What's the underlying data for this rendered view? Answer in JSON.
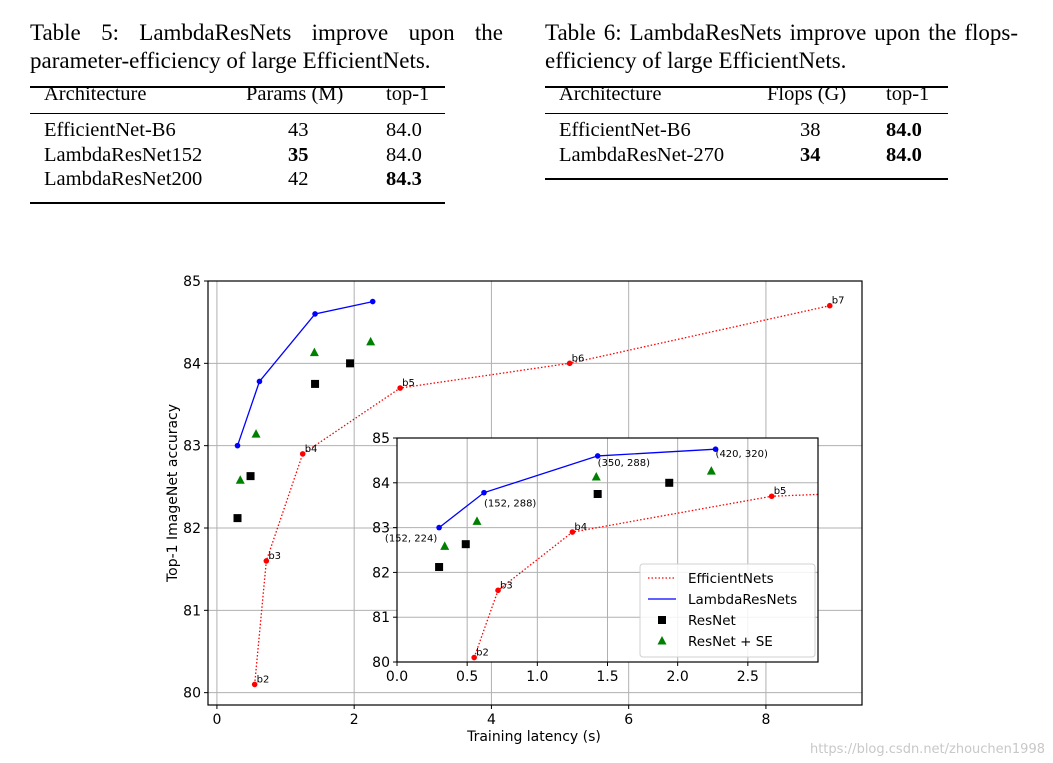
{
  "table5": {
    "caption": "Table 5: LambdaResNets improve upon the parameter-efficiency of large EfficientNets.",
    "headers": [
      "Architecture",
      "Params (M)",
      "top-1"
    ],
    "rows": [
      {
        "arch": "EfficientNet-B6",
        "val": "43",
        "top1": "84.0",
        "bold_val": false,
        "bold_top1": false
      },
      {
        "arch": "LambdaResNet152",
        "val": "35",
        "top1": "84.0",
        "bold_val": true,
        "bold_top1": false
      },
      {
        "arch": "LambdaResNet200",
        "val": "42",
        "top1": "84.3",
        "bold_val": false,
        "bold_top1": true
      }
    ]
  },
  "table6": {
    "caption": "Table 6: LambdaResNets improve upon the flops-efficiency of large EfficientNets.",
    "headers": [
      "Architecture",
      "Flops (G)",
      "top-1"
    ],
    "rows": [
      {
        "arch": "EfficientNet-B6",
        "val": "38",
        "top1": "84.0",
        "bold_val": false,
        "bold_top1": true
      },
      {
        "arch": "LambdaResNet-270",
        "val": "34",
        "top1": "84.0",
        "bold_val": true,
        "bold_top1": true
      }
    ]
  },
  "chart_data": [
    {
      "type": "line",
      "xlabel": "Training latency (s)",
      "ylabel": "Top-1 ImageNet accuracy",
      "xlim": [
        -0.13,
        9.4
      ],
      "ylim": [
        79.85,
        85
      ],
      "xticks": [
        0,
        2,
        4,
        6,
        8
      ],
      "yticks": [
        80,
        81,
        82,
        83,
        84,
        85
      ],
      "grid": true,
      "series": [
        {
          "name": "EfficientNets",
          "style": "dotted",
          "color": "#ff0000",
          "points": [
            [
              0.55,
              80.1
            ],
            [
              0.72,
              81.6
            ],
            [
              1.25,
              82.9
            ],
            [
              2.67,
              83.7
            ],
            [
              5.14,
              84.0
            ],
            [
              8.93,
              84.7
            ]
          ],
          "labels": [
            "b2",
            "b3",
            "b4",
            "b5",
            "b6",
            "b7"
          ]
        },
        {
          "name": "LambdaResNets",
          "style": "solid",
          "color": "#0000ff",
          "points": [
            [
              0.3,
              83.0
            ],
            [
              0.62,
              83.78
            ],
            [
              1.43,
              84.6
            ],
            [
              2.27,
              84.75
            ]
          ]
        },
        {
          "name": "ResNet",
          "style": "marker-square",
          "color": "#000000",
          "points": [
            [
              0.3,
              82.12
            ],
            [
              0.49,
              82.63
            ],
            [
              1.43,
              83.75
            ],
            [
              1.94,
              84.0
            ]
          ]
        },
        {
          "name": "ResNet + SE",
          "style": "marker-triangle",
          "color": "#008000",
          "points": [
            [
              0.34,
              82.58
            ],
            [
              0.57,
              83.14
            ],
            [
              1.42,
              84.13
            ],
            [
              2.24,
              84.26
            ]
          ]
        }
      ]
    },
    {
      "type": "line",
      "inset": true,
      "xlim": [
        0,
        3.0
      ],
      "ylim": [
        80,
        85
      ],
      "xticks": [
        "0.0",
        "0.5",
        "1.0",
        "1.5",
        "2.0",
        "2.5"
      ],
      "yticks": [
        80,
        81,
        82,
        83,
        84,
        85
      ],
      "grid": true,
      "legend": "lower-right",
      "lambda_annotations": [
        "(152, 224)",
        "(152, 288)",
        "(350, 288)",
        "(420, 320)"
      ],
      "efficientnet_labels": [
        "b2",
        "b3",
        "b4",
        "b5"
      ]
    }
  ],
  "watermark": "https://blog.csdn.net/zhouchen1998"
}
